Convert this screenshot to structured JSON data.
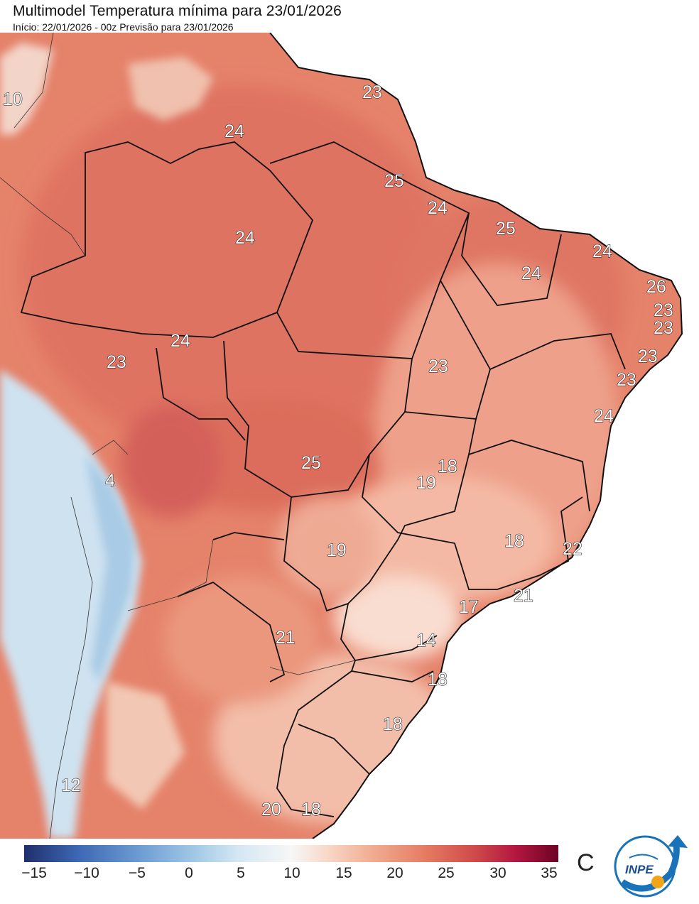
{
  "header": {
    "title": "Multimodel Temperatura mínima para 23/01/2026",
    "subtitle": "Início: 22/01/2026 - 00z  Previsão para 23/01/2026"
  },
  "map_labels": [
    {
      "id": "l01",
      "text": "10"
    },
    {
      "id": "l02",
      "text": "24"
    },
    {
      "id": "l03",
      "text": "23"
    },
    {
      "id": "l04",
      "text": "25"
    },
    {
      "id": "l05",
      "text": "24"
    },
    {
      "id": "l06",
      "text": "24"
    },
    {
      "id": "l07",
      "text": "25"
    },
    {
      "id": "l08",
      "text": "24"
    },
    {
      "id": "l09",
      "text": "24"
    },
    {
      "id": "l10",
      "text": "26"
    },
    {
      "id": "l11",
      "text": "23"
    },
    {
      "id": "l12",
      "text": "23"
    },
    {
      "id": "l13",
      "text": "23"
    },
    {
      "id": "l14",
      "text": "23"
    },
    {
      "id": "l15",
      "text": "24"
    },
    {
      "id": "l16",
      "text": "23"
    },
    {
      "id": "l17",
      "text": "24"
    },
    {
      "id": "l18",
      "text": "23"
    },
    {
      "id": "l19",
      "text": "25"
    },
    {
      "id": "l20",
      "text": "4"
    },
    {
      "id": "l21",
      "text": "18"
    },
    {
      "id": "l22",
      "text": "19"
    },
    {
      "id": "l23",
      "text": "18"
    },
    {
      "id": "l24",
      "text": "19"
    },
    {
      "id": "l25",
      "text": "22"
    },
    {
      "id": "l26",
      "text": "21"
    },
    {
      "id": "l27",
      "text": "17"
    },
    {
      "id": "l28",
      "text": "21"
    },
    {
      "id": "l29",
      "text": "14"
    },
    {
      "id": "l30",
      "text": "18"
    },
    {
      "id": "l31",
      "text": "18"
    },
    {
      "id": "l32",
      "text": "12"
    },
    {
      "id": "l33",
      "text": "20"
    },
    {
      "id": "l34",
      "text": "18"
    }
  ],
  "colorbar": {
    "ticks": [
      "−15",
      "−10",
      "−5",
      "0",
      "5",
      "10",
      "15",
      "20",
      "25",
      "30",
      "35"
    ],
    "unit": "C",
    "colors": {
      "min": "#1f2f6b",
      "zero": "#a8cde8",
      "mid": "#f7f7f7",
      "warm": "#e57c63",
      "max": "#6c0325"
    }
  },
  "logo": {
    "text": "INPE"
  }
}
